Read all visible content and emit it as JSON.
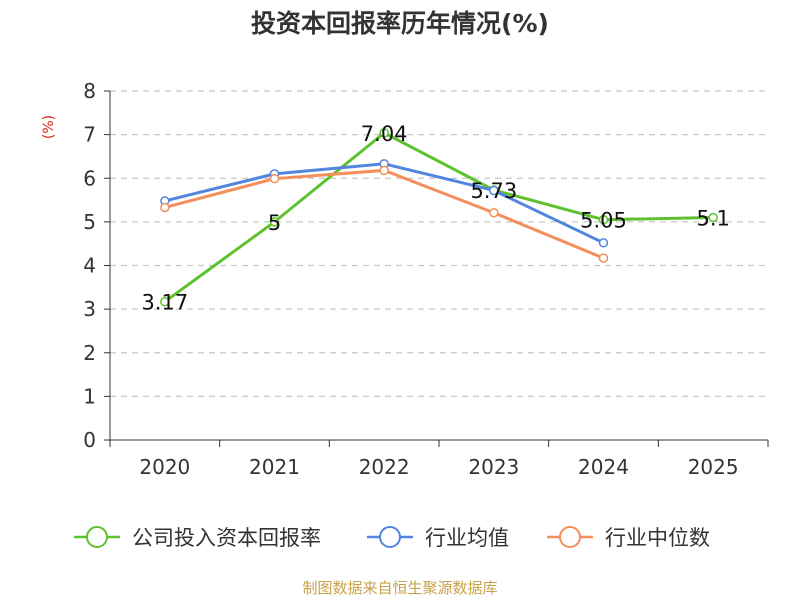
{
  "title": "投资本回报率历年情况(%)",
  "footer": "制图数据来自恒生聚源数据库",
  "chart_data": {
    "type": "line",
    "title": "投资本回报率历年情况(%)",
    "xlabel": "",
    "ylabel": "(%)",
    "categories": [
      "2020",
      "2021",
      "2022",
      "2023",
      "2024",
      "2025"
    ],
    "ylim": [
      0,
      8
    ],
    "yticks": [
      0,
      1,
      2,
      3,
      4,
      5,
      6,
      7,
      8
    ],
    "grid": true,
    "legend_position": "bottom",
    "series": [
      {
        "name": "公司投入资本回报率",
        "color": "#5ec22e",
        "values": [
          3.17,
          5,
          7.04,
          5.73,
          5.05,
          5.1
        ],
        "labels": [
          "3.17",
          "5",
          "7.04",
          "5.73",
          "5.05",
          "5.1"
        ]
      },
      {
        "name": "行业均值",
        "color": "#5185de",
        "values": [
          5.48,
          6.1,
          6.33,
          5.72,
          4.52,
          null
        ]
      },
      {
        "name": "行业中位数",
        "color": "#f48e5a",
        "values": [
          5.33,
          5.99,
          6.18,
          5.21,
          4.17,
          null
        ]
      }
    ]
  }
}
